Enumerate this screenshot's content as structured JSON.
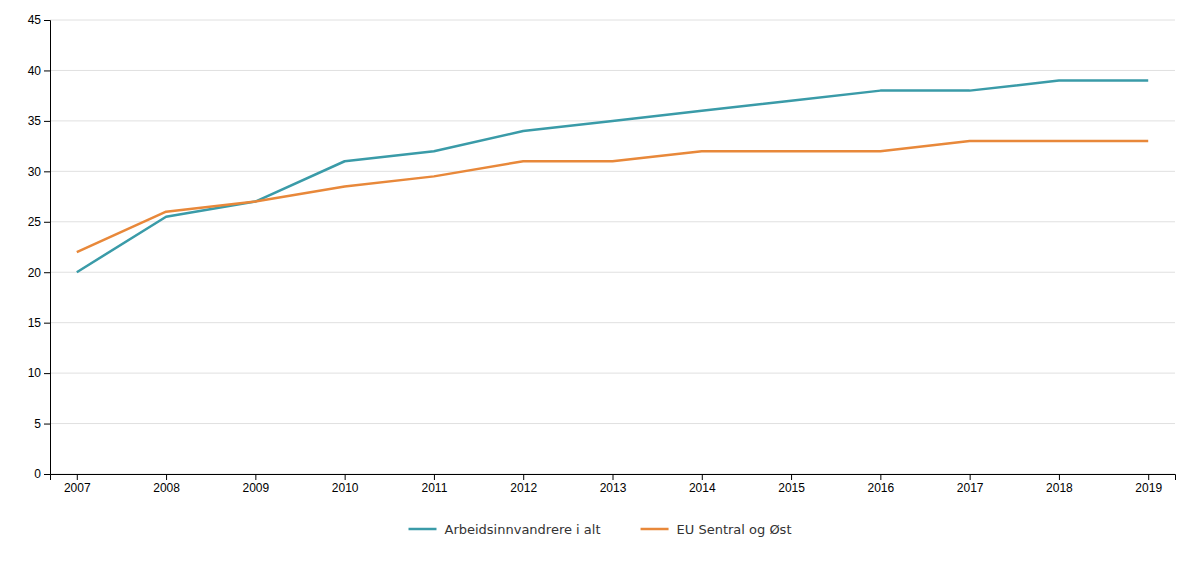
{
  "chart_data": {
    "type": "line",
    "x": [
      2007,
      2008,
      2009,
      2010,
      2011,
      2012,
      2013,
      2014,
      2015,
      2016,
      2017,
      2018,
      2019
    ],
    "series": [
      {
        "name": "Arbeidsinnvandrere i alt",
        "color": "#3a9ba8",
        "values": [
          20.0,
          25.5,
          27.0,
          31.0,
          32.0,
          34.0,
          35.0,
          36.0,
          37.0,
          38.0,
          38.0,
          39.0,
          39.0
        ]
      },
      {
        "name": "EU Sentral og Øst",
        "color": "#e8883a",
        "values": [
          22.0,
          26.0,
          27.0,
          28.5,
          29.5,
          31.0,
          31.0,
          32.0,
          32.0,
          32.0,
          33.0,
          33.0,
          33.0
        ]
      }
    ],
    "xlim": [
      2006.7,
      2019.3
    ],
    "xticks": [
      2007,
      2008,
      2009,
      2010,
      2011,
      2012,
      2013,
      2014,
      2015,
      2016,
      2017,
      2018,
      2019
    ],
    "ylim": [
      0,
      45
    ],
    "yticks": [
      0,
      5,
      10,
      15,
      20,
      25,
      30,
      35,
      40,
      45
    ],
    "grid": true,
    "legend": "bottom"
  }
}
